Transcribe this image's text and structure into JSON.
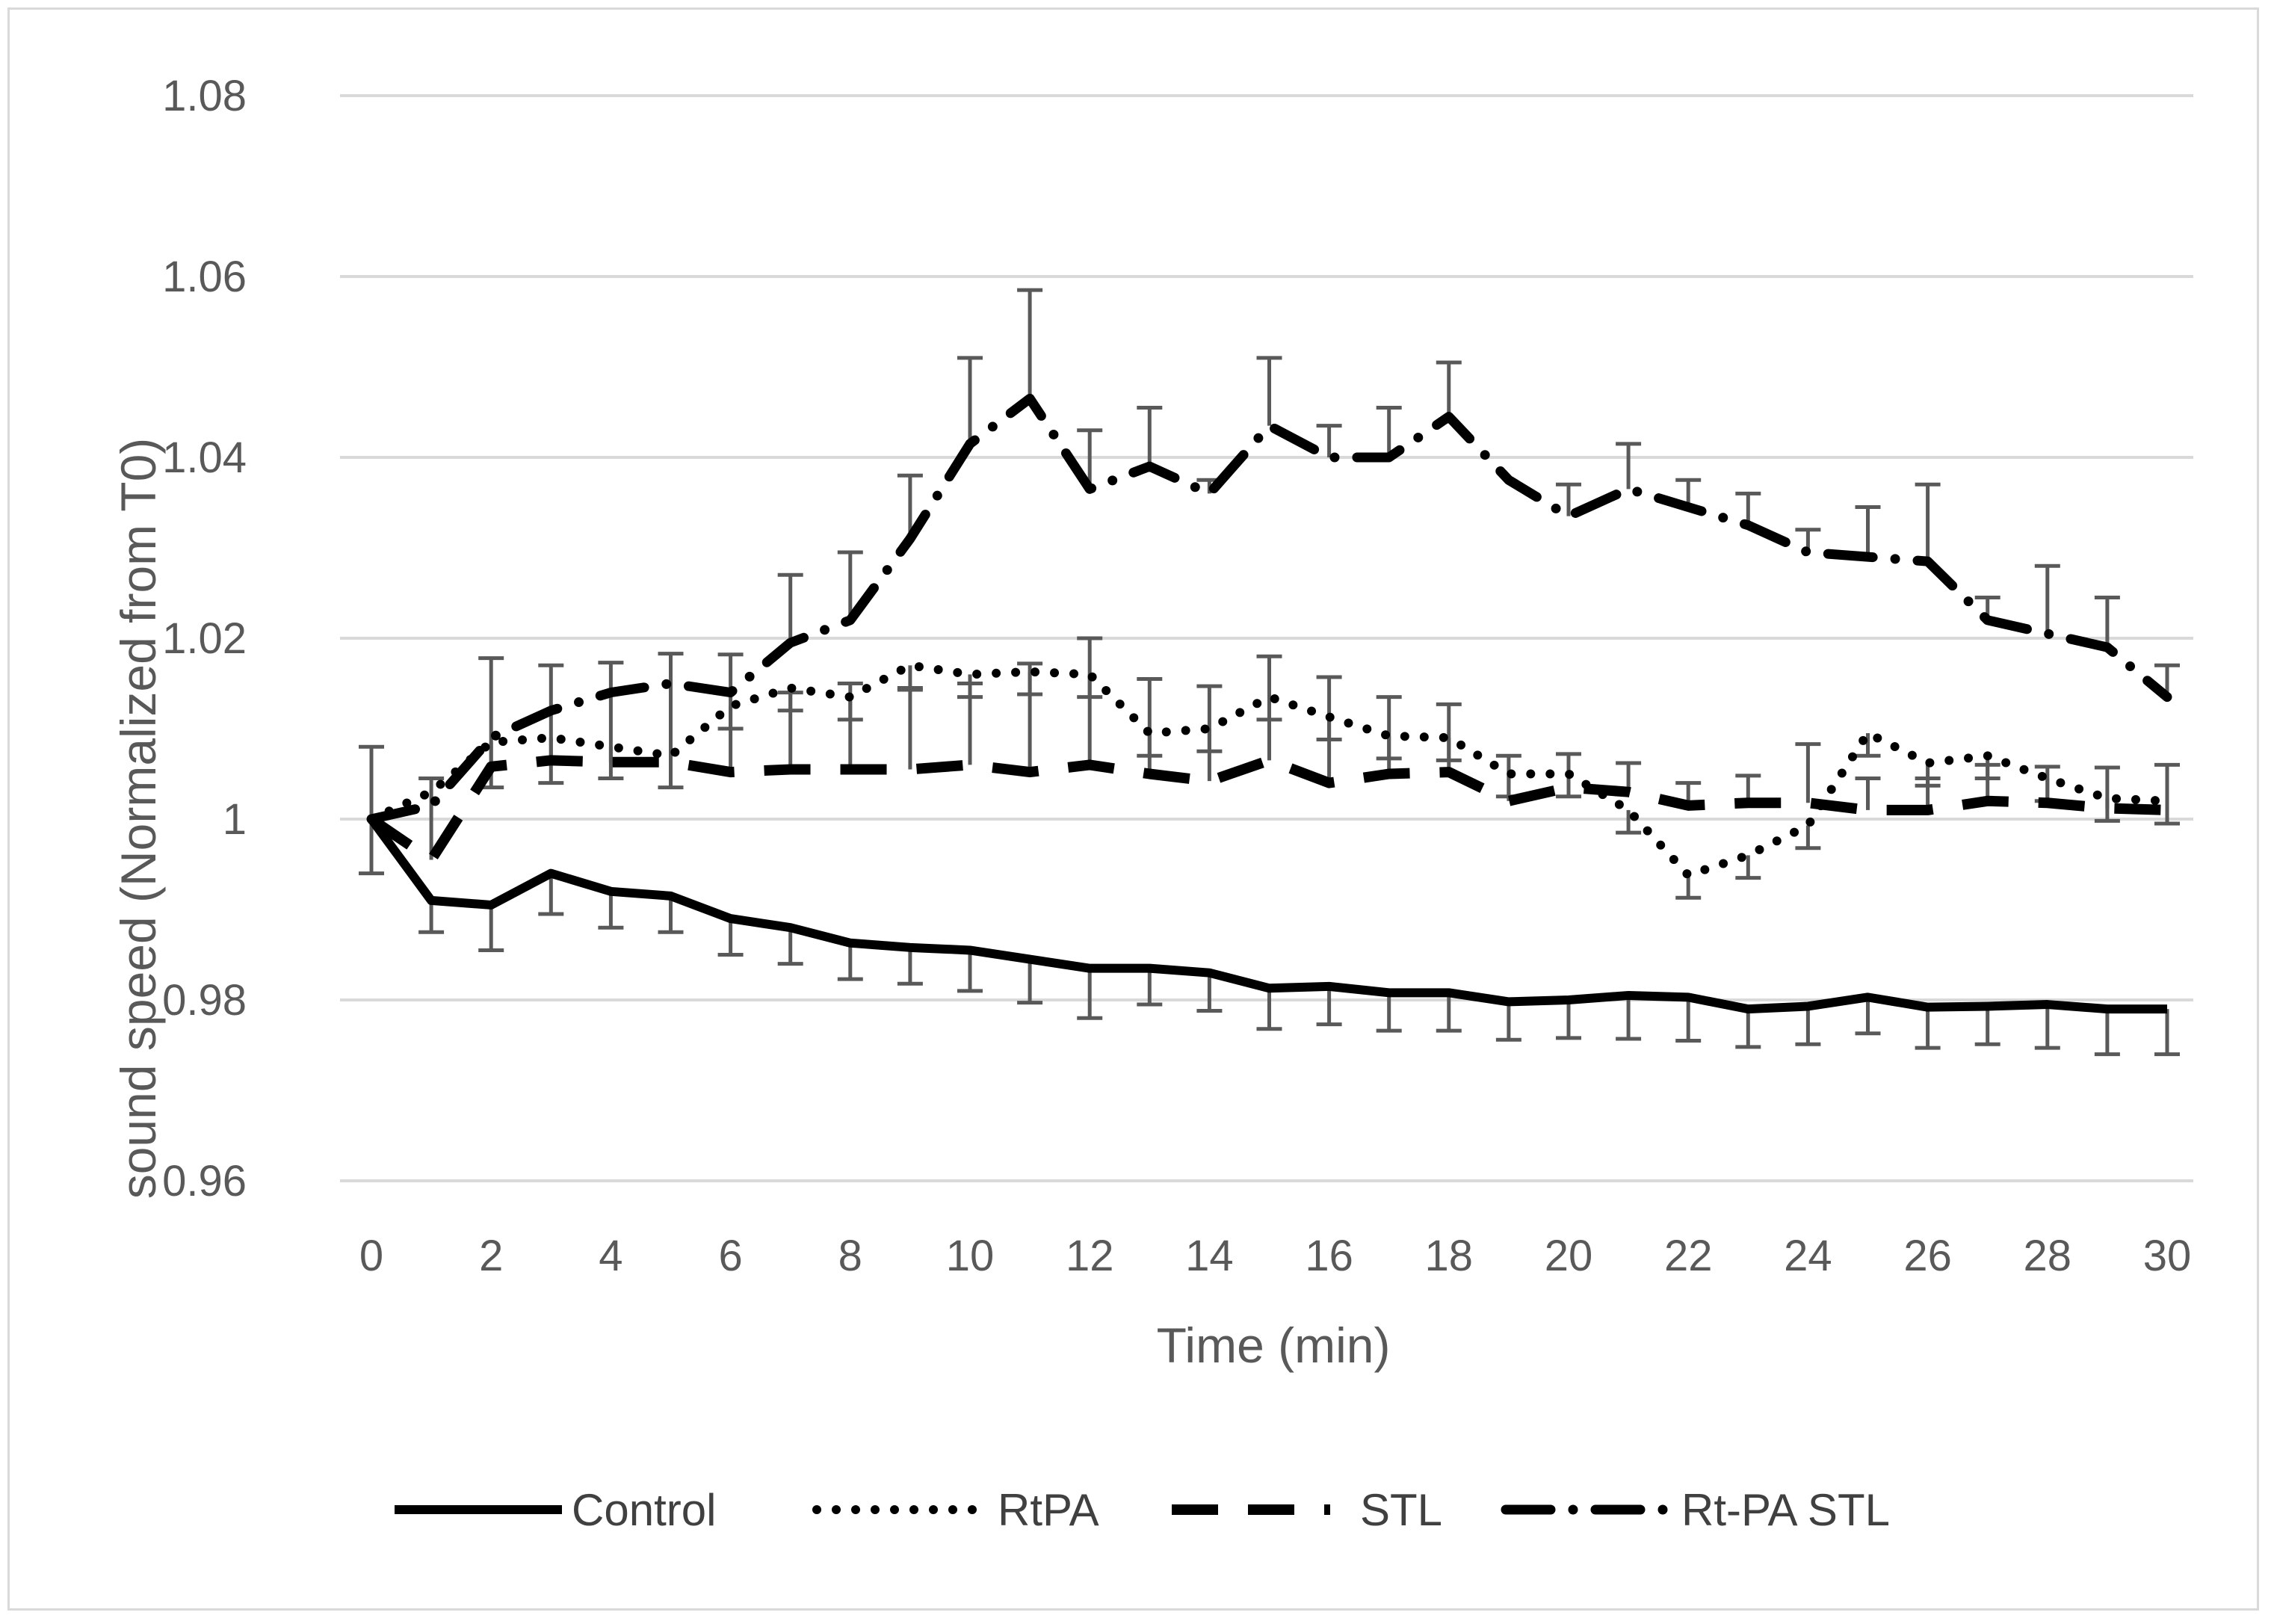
{
  "chart_data": {
    "type": "line",
    "xlabel": "Time (min)",
    "ylabel": "sound speed (Normalized from T0)",
    "ylim": [
      0.96,
      1.08
    ],
    "xlim": [
      0,
      30
    ],
    "y_ticks": [
      "0.96",
      "0.98",
      "1",
      "1.02",
      "1.04",
      "1.06",
      "1.08"
    ],
    "x_ticks": [
      "0",
      "2",
      "4",
      "6",
      "8",
      "10",
      "12",
      "14",
      "16",
      "18",
      "20",
      "22",
      "24",
      "26",
      "28",
      "30"
    ],
    "grid": "horizontal",
    "legend_position": "bottom",
    "error_bars": "positive-direction",
    "x": [
      0,
      1,
      2,
      3,
      4,
      5,
      6,
      7,
      8,
      9,
      10,
      11,
      12,
      13,
      14,
      15,
      16,
      17,
      18,
      19,
      20,
      21,
      22,
      23,
      24,
      25,
      26,
      27,
      28,
      29,
      30
    ],
    "series": [
      {
        "name": "Control",
        "line_style": "solid",
        "error_direction": "down",
        "values": [
          1.0,
          0.991,
          0.9905,
          0.994,
          0.992,
          0.9915,
          0.989,
          0.988,
          0.9863,
          0.9858,
          0.9855,
          0.9845,
          0.9835,
          0.9835,
          0.983,
          0.9813,
          0.9815,
          0.9808,
          0.9808,
          0.9798,
          0.98,
          0.9805,
          0.9803,
          0.979,
          0.9793,
          0.9803,
          0.9792,
          0.9793,
          0.9795,
          0.979,
          0.979
        ],
        "errors": [
          0.006,
          0.0035,
          0.005,
          0.0045,
          0.004,
          0.004,
          0.004,
          0.004,
          0.004,
          0.004,
          0.0045,
          0.0048,
          0.0055,
          0.004,
          0.0042,
          0.0045,
          0.0042,
          0.0042,
          0.0042,
          0.0042,
          0.0042,
          0.0048,
          0.0048,
          0.0042,
          0.0042,
          0.004,
          0.0045,
          0.0042,
          0.0048,
          0.005,
          0.005
        ]
      },
      {
        "name": "RtPA",
        "line_style": "dotted",
        "error_direction": "down",
        "values": [
          1.0,
          1.003,
          1.0085,
          1.009,
          1.008,
          1.007,
          1.0125,
          1.0145,
          1.0135,
          1.017,
          1.016,
          1.0163,
          1.016,
          1.0095,
          1.01,
          1.0135,
          1.0113,
          1.0092,
          1.009,
          1.005,
          1.005,
          1.001,
          0.9938,
          0.996,
          0.9993,
          1.0095,
          1.0062,
          1.007,
          1.0045,
          1.0023,
          1.002
        ],
        "errors": [
          0.0,
          0.0,
          0.005,
          0.005,
          0.0035,
          0.0035,
          0.0025,
          0.0025,
          0.0025,
          0.0025,
          0.0025,
          0.0025,
          0.0025,
          0.0025,
          0.0025,
          0.0025,
          0.0025,
          0.0025,
          0.0025,
          0.0025,
          0.0025,
          0.0025,
          0.0025,
          0.0025,
          0.0025,
          0.0025,
          0.0025,
          0.0025,
          0.0025,
          0.0025,
          0.0025
        ]
      },
      {
        "name": "STL",
        "line_style": "dashed",
        "error_direction": "up",
        "values": [
          1.0,
          0.9955,
          1.0058,
          1.0065,
          1.0063,
          1.0063,
          1.0052,
          1.0055,
          1.0055,
          1.0055,
          1.006,
          1.0052,
          1.006,
          1.005,
          1.0042,
          1.0065,
          1.004,
          1.005,
          1.0052,
          1.002,
          1.0035,
          1.003,
          1.0015,
          1.0018,
          1.0018,
          1.001,
          1.001,
          1.002,
          1.0018,
          1.0012,
          1.001
        ],
        "errors": [
          0.008,
          0.009,
          0.012,
          0.0105,
          0.011,
          0.012,
          0.013,
          0.0085,
          0.0095,
          0.0088,
          0.009,
          0.012,
          0.014,
          0.0105,
          0.0105,
          0.0115,
          0.0117,
          0.0085,
          0.0075,
          0.005,
          0.0037,
          0.0032,
          0.0025,
          0.003,
          0.0065,
          0.0035,
          0.0035,
          0.004,
          0.004,
          0.0045,
          0.005
        ]
      },
      {
        "name": "Rt-PA STL",
        "line_style": "long-dash-dot",
        "error_direction": "up",
        "values": [
          1.0,
          1.0015,
          1.009,
          1.012,
          1.014,
          1.015,
          1.014,
          1.0195,
          1.022,
          1.031,
          1.0415,
          1.0465,
          1.0365,
          1.039,
          1.036,
          1.0435,
          1.04,
          1.04,
          1.0445,
          1.0375,
          1.0335,
          1.0365,
          1.0345,
          1.0325,
          1.0295,
          1.029,
          1.0285,
          1.022,
          1.0205,
          1.019,
          1.0135
        ],
        "errors": [
          0.0,
          0.0,
          0.0,
          0.0,
          0.0,
          0.0,
          0.0,
          0.0075,
          0.0075,
          0.007,
          0.0095,
          0.012,
          0.0065,
          0.0065,
          0.0015,
          0.0075,
          0.0035,
          0.0055,
          0.006,
          0.0,
          0.0035,
          0.005,
          0.003,
          0.0035,
          0.0025,
          0.0055,
          0.0085,
          0.0025,
          0.0075,
          0.0055,
          0.0035
        ]
      }
    ]
  }
}
